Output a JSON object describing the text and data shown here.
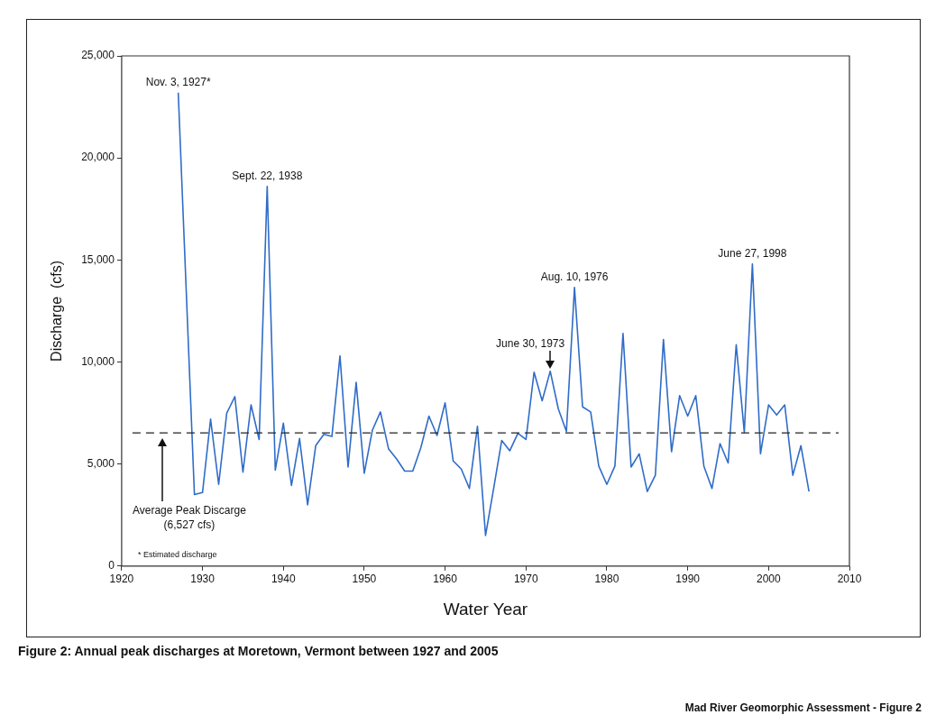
{
  "chart_data": {
    "type": "line",
    "title": "Figure 2: Annual peak discharges at Moretown, Vermont between 1927 and 2005",
    "xlabel": "Water Year",
    "ylabel": "Discharge  (cfs)",
    "x": [
      1927,
      1929,
      1930,
      1931,
      1932,
      1933,
      1934,
      1935,
      1936,
      1937,
      1938,
      1939,
      1940,
      1941,
      1942,
      1943,
      1944,
      1945,
      1946,
      1947,
      1948,
      1949,
      1950,
      1951,
      1952,
      1953,
      1954,
      1955,
      1956,
      1957,
      1958,
      1959,
      1960,
      1961,
      1962,
      1963,
      1964,
      1965,
      1966,
      1967,
      1968,
      1969,
      1970,
      1971,
      1972,
      1973,
      1974,
      1975,
      1976,
      1977,
      1978,
      1979,
      1980,
      1981,
      1982,
      1983,
      1984,
      1985,
      1986,
      1987,
      1988,
      1989,
      1990,
      1991,
      1992,
      1993,
      1994,
      1995,
      1996,
      1997,
      1998,
      1999,
      2000,
      2001,
      2002,
      2003,
      2004,
      2005
    ],
    "series": [
      {
        "color": "#2f6cc8",
        "values": [
          23200,
          3500,
          3600,
          7200,
          4000,
          7500,
          8300,
          4600,
          7900,
          6200,
          18600,
          4700,
          7000,
          3950,
          6250,
          3000,
          5900,
          6450,
          6350,
          10300,
          4850,
          9000,
          4550,
          6650,
          7550,
          5750,
          5250,
          4650,
          4650,
          5800,
          7350,
          6400,
          8000,
          5150,
          4750,
          3800,
          6850,
          1500,
          3800,
          6150,
          5650,
          6500,
          6200,
          9500,
          8100,
          9550,
          7700,
          6600,
          13650,
          7800,
          7550,
          4900,
          4000,
          4900,
          11400,
          4850,
          5500,
          3650,
          4450,
          11100,
          5600,
          8350,
          7350,
          8350,
          4900,
          3800,
          6000,
          5050,
          10850,
          6550,
          14800,
          5500,
          7900,
          7400,
          7900,
          4450,
          5900,
          3650
        ]
      }
    ],
    "xlim": [
      1920,
      2010
    ],
    "xticks": [
      1920,
      1930,
      1940,
      1950,
      1960,
      1970,
      1980,
      1990,
      2000,
      2010
    ],
    "ylim": [
      0,
      25000
    ],
    "yticks": [
      0,
      {
        "value": 5000,
        "label": "5,000"
      },
      {
        "value": 10000,
        "label": "10,000"
      },
      {
        "value": 15000,
        "label": "15,000"
      },
      {
        "value": 20000,
        "label": "20,000"
      },
      {
        "value": 25000,
        "label": "25,000"
      }
    ],
    "grid": false,
    "legend": false,
    "marker": "none",
    "line_style": "solid",
    "ref_lines": [
      {
        "axis": "y",
        "value": 6527,
        "label": "Average Peak Discarge (6,527 cfs)",
        "color": "#222222",
        "line_style": "dashed"
      }
    ],
    "annotations": [
      {
        "text": "Nov. 3, 1927*",
        "x": 1927,
        "y": 23200
      },
      {
        "text": "Sept. 22, 1938",
        "x": 1938,
        "y": 18600
      },
      {
        "text": "June 30, 1973",
        "x": 1973,
        "y": 9550
      },
      {
        "text": "Aug. 10, 1976",
        "x": 1976,
        "y": 13650
      },
      {
        "text": "June 27, 1998",
        "x": 1998,
        "y": 14800
      },
      "* Estimated discharge",
      "Mad River Geomorphic Assessment - Figure 2"
    ]
  }
}
